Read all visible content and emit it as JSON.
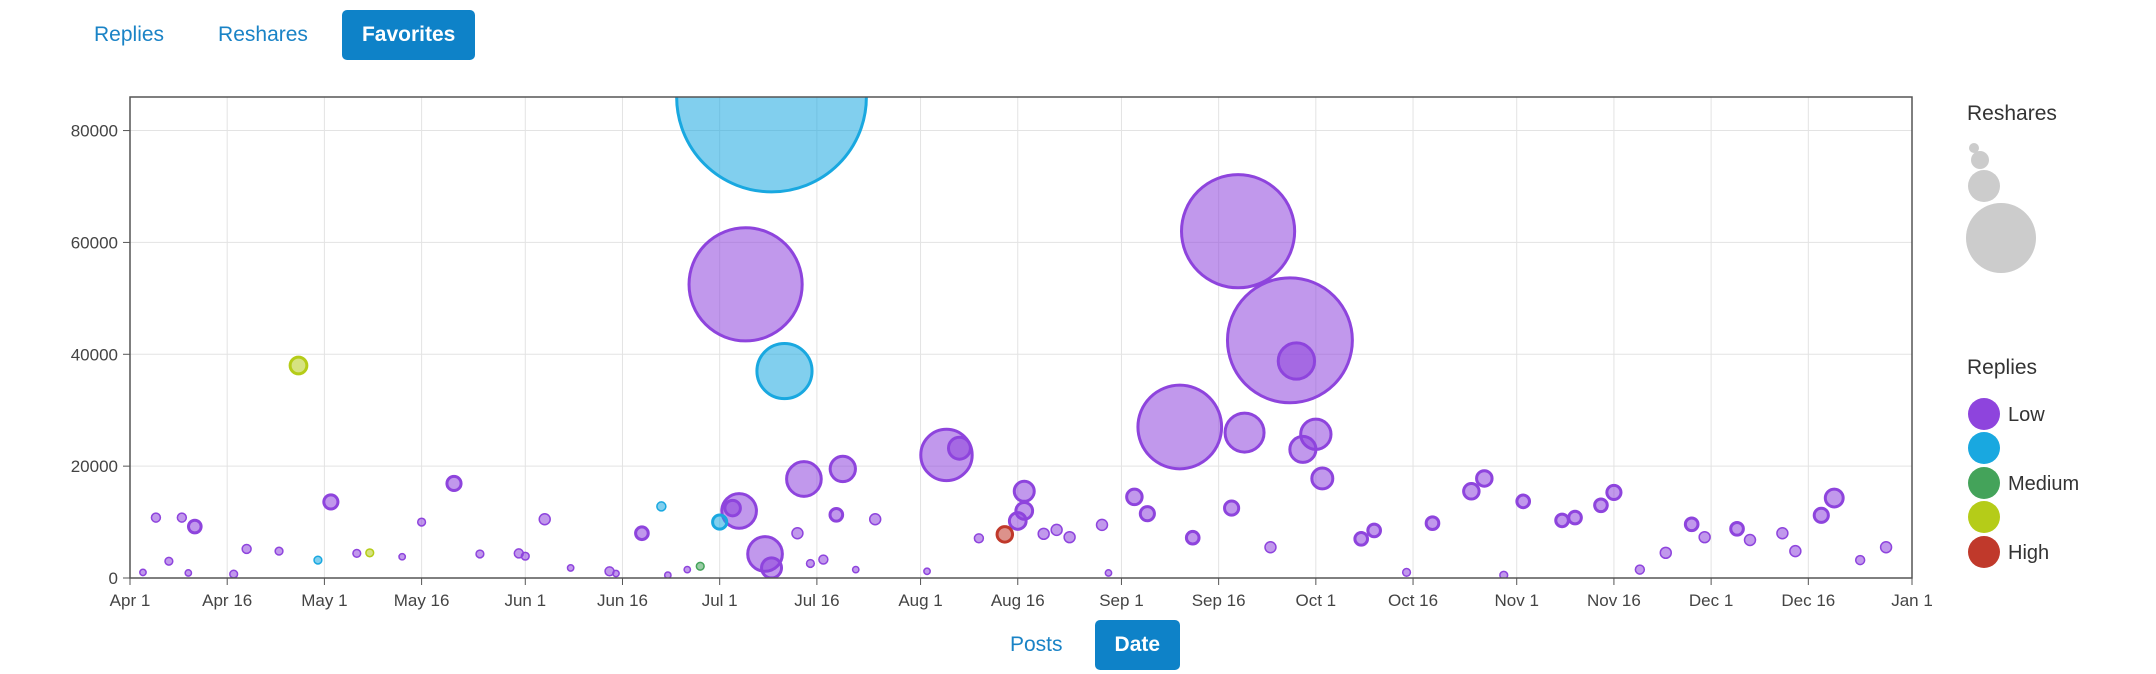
{
  "top_tabs": [
    {
      "label": "Replies",
      "active": false
    },
    {
      "label": "Reshares",
      "active": false
    },
    {
      "label": "Favorites",
      "active": true
    }
  ],
  "x_tabs": [
    {
      "label": "Posts",
      "active": false
    },
    {
      "label": "Date",
      "active": true
    }
  ],
  "colors": {
    "accent": "#0e82c8",
    "low": "#8e44dd",
    "medium": "#19a8e0",
    "medium_high": "#b5cc18",
    "high": "#c0392b",
    "grey": "#cccccc",
    "grid": "#e3e3e3"
  },
  "chart_data": {
    "type": "scatter",
    "title": "",
    "xlabel": "",
    "ylabel": "",
    "x_type": "date",
    "xlim": [
      "Apr 1",
      "Jan 1"
    ],
    "ylim": [
      0,
      86000
    ],
    "x_ticks": [
      "Apr 1",
      "Apr 16",
      "May 1",
      "May 16",
      "Jun 1",
      "Jun 16",
      "Jul 1",
      "Jul 16",
      "Aug 1",
      "Aug 16",
      "Sep 1",
      "Sep 16",
      "Oct 1",
      "Oct 16",
      "Nov 1",
      "Nov 16",
      "Dec 1",
      "Dec 16",
      "Jan 1"
    ],
    "y_ticks": [
      0,
      20000,
      40000,
      60000,
      80000
    ],
    "grid": true,
    "size_legend": {
      "title": "Reshares"
    },
    "color_legend": {
      "title": "Replies",
      "entries": [
        {
          "label": "Low",
          "color": "low"
        },
        {
          "label": "",
          "color": "medium"
        },
        {
          "label": "Medium",
          "color": "medium_green"
        },
        {
          "label": "",
          "color": "medium_high"
        },
        {
          "label": "High",
          "color": "high"
        }
      ]
    },
    "points": [
      {
        "date": "Jul 9",
        "y": 86000,
        "size": 9000,
        "color": "medium"
      },
      {
        "date": "Jul 5",
        "y": 52500,
        "size": 3200,
        "color": "low"
      },
      {
        "date": "Sep 19",
        "y": 62000,
        "size": 3200,
        "color": "low"
      },
      {
        "date": "Sep 27",
        "y": 42500,
        "size": 3900,
        "color": "low"
      },
      {
        "date": "Sep 10",
        "y": 27000,
        "size": 1750,
        "color": "low"
      },
      {
        "date": "Jul 11",
        "y": 37000,
        "size": 760,
        "color": "medium"
      },
      {
        "date": "Aug 5",
        "y": 22000,
        "size": 660,
        "color": "low"
      },
      {
        "date": "Sep 20",
        "y": 26000,
        "size": 380,
        "color": "low"
      },
      {
        "date": "Sep 28",
        "y": 38800,
        "size": 330,
        "color": "low"
      },
      {
        "date": "Sep 29",
        "y": 23000,
        "size": 170,
        "color": "low"
      },
      {
        "date": "Oct 1",
        "y": 25700,
        "size": 230,
        "color": "low"
      },
      {
        "date": "Oct 2",
        "y": 17800,
        "size": 110,
        "color": "low"
      },
      {
        "date": "Jul 14",
        "y": 17700,
        "size": 300,
        "color": "low"
      },
      {
        "date": "Jul 20",
        "y": 19500,
        "size": 160,
        "color": "low"
      },
      {
        "date": "Jul 4",
        "y": 12000,
        "size": 300,
        "color": "low"
      },
      {
        "date": "Jul 8",
        "y": 4300,
        "size": 300,
        "color": "low"
      },
      {
        "date": "Jul 9",
        "y": 1800,
        "size": 100,
        "color": "low"
      },
      {
        "date": "Aug 7",
        "y": 23200,
        "size": 120,
        "color": "low"
      },
      {
        "date": "Aug 17",
        "y": 15500,
        "size": 100,
        "color": "low"
      },
      {
        "date": "Aug 17",
        "y": 12000,
        "size": 70,
        "color": "low"
      },
      {
        "date": "Aug 16",
        "y": 10200,
        "size": 70,
        "color": "low"
      },
      {
        "date": "Aug 14",
        "y": 7800,
        "size": 60,
        "color": "high"
      },
      {
        "date": "Aug 20",
        "y": 7900,
        "size": 30,
        "color": "low"
      },
      {
        "date": "Aug 22",
        "y": 8600,
        "size": 30,
        "color": "low"
      },
      {
        "date": "Aug 24",
        "y": 7300,
        "size": 30,
        "color": "low"
      },
      {
        "date": "Aug 29",
        "y": 9500,
        "size": 30,
        "color": "low"
      },
      {
        "date": "Sep 3",
        "y": 14500,
        "size": 60,
        "color": "low"
      },
      {
        "date": "Sep 5",
        "y": 11500,
        "size": 50,
        "color": "low"
      },
      {
        "date": "Sep 12",
        "y": 7200,
        "size": 40,
        "color": "low"
      },
      {
        "date": "Sep 18",
        "y": 12500,
        "size": 50,
        "color": "low"
      },
      {
        "date": "Sep 24",
        "y": 5500,
        "size": 30,
        "color": "low"
      },
      {
        "date": "Oct 8",
        "y": 7000,
        "size": 40,
        "color": "low"
      },
      {
        "date": "Oct 10",
        "y": 8500,
        "size": 40,
        "color": "low"
      },
      {
        "date": "Oct 15",
        "y": 1000,
        "size": 15,
        "color": "low"
      },
      {
        "date": "Oct 19",
        "y": 9800,
        "size": 40,
        "color": "low"
      },
      {
        "date": "Oct 25",
        "y": 15500,
        "size": 60,
        "color": "low"
      },
      {
        "date": "Oct 27",
        "y": 17800,
        "size": 60,
        "color": "low"
      },
      {
        "date": "Oct 30",
        "y": 500,
        "size": 15,
        "color": "low"
      },
      {
        "date": "Nov 2",
        "y": 13700,
        "size": 40,
        "color": "low"
      },
      {
        "date": "Nov 8",
        "y": 10300,
        "size": 40,
        "color": "low"
      },
      {
        "date": "Nov 10",
        "y": 10800,
        "size": 40,
        "color": "low"
      },
      {
        "date": "Nov 14",
        "y": 13000,
        "size": 40,
        "color": "low"
      },
      {
        "date": "Nov 16",
        "y": 15300,
        "size": 50,
        "color": "low"
      },
      {
        "date": "Nov 20",
        "y": 1500,
        "size": 20,
        "color": "low"
      },
      {
        "date": "Nov 24",
        "y": 4500,
        "size": 30,
        "color": "low"
      },
      {
        "date": "Nov 28",
        "y": 9600,
        "size": 40,
        "color": "low"
      },
      {
        "date": "Nov 30",
        "y": 7300,
        "size": 30,
        "color": "low"
      },
      {
        "date": "Dec 5",
        "y": 8800,
        "size": 40,
        "color": "low"
      },
      {
        "date": "Dec 7",
        "y": 6800,
        "size": 30,
        "color": "low"
      },
      {
        "date": "Dec 12",
        "y": 8000,
        "size": 30,
        "color": "low"
      },
      {
        "date": "Dec 14",
        "y": 4800,
        "size": 30,
        "color": "low"
      },
      {
        "date": "Dec 18",
        "y": 11200,
        "size": 50,
        "color": "low"
      },
      {
        "date": "Dec 20",
        "y": 14300,
        "size": 80,
        "color": "low"
      },
      {
        "date": "Dec 24",
        "y": 3200,
        "size": 20,
        "color": "low"
      },
      {
        "date": "Dec 28",
        "y": 5500,
        "size": 30,
        "color": "low"
      },
      {
        "date": "Apr 27",
        "y": 38000,
        "size": 70,
        "color": "medium_high"
      },
      {
        "date": "Apr 5",
        "y": 10800,
        "size": 20,
        "color": "low"
      },
      {
        "date": "Apr 7",
        "y": 3000,
        "size": 15,
        "color": "low"
      },
      {
        "date": "Apr 9",
        "y": 10800,
        "size": 20,
        "color": "low"
      },
      {
        "date": "Apr 11",
        "y": 9200,
        "size": 40,
        "color": "low"
      },
      {
        "date": "Apr 3",
        "y": 1000,
        "size": 10,
        "color": "low"
      },
      {
        "date": "Apr 10",
        "y": 900,
        "size": 10,
        "color": "low"
      },
      {
        "date": "Apr 17",
        "y": 700,
        "size": 15,
        "color": "low"
      },
      {
        "date": "Apr 19",
        "y": 5200,
        "size": 20,
        "color": "low"
      },
      {
        "date": "Apr 24",
        "y": 4800,
        "size": 15,
        "color": "low"
      },
      {
        "date": "Apr 30",
        "y": 3200,
        "size": 15,
        "color": "medium"
      },
      {
        "date": "May 2",
        "y": 13600,
        "size": 50,
        "color": "low"
      },
      {
        "date": "May 6",
        "y": 4400,
        "size": 15,
        "color": "low"
      },
      {
        "date": "May 8",
        "y": 4500,
        "size": 15,
        "color": "medium_high"
      },
      {
        "date": "May 13",
        "y": 3800,
        "size": 10,
        "color": "low"
      },
      {
        "date": "May 16",
        "y": 10000,
        "size": 15,
        "color": "low"
      },
      {
        "date": "May 21",
        "y": 16900,
        "size": 50,
        "color": "low"
      },
      {
        "date": "May 25",
        "y": 4300,
        "size": 15,
        "color": "low"
      },
      {
        "date": "May 31",
        "y": 4400,
        "size": 20,
        "color": "low"
      },
      {
        "date": "Jun 1",
        "y": 3900,
        "size": 15,
        "color": "low"
      },
      {
        "date": "Jun 4",
        "y": 10500,
        "size": 30,
        "color": "low"
      },
      {
        "date": "Jun 8",
        "y": 1800,
        "size": 10,
        "color": "low"
      },
      {
        "date": "Jun 14",
        "y": 1200,
        "size": 20,
        "color": "low"
      },
      {
        "date": "Jun 15",
        "y": 800,
        "size": 10,
        "color": "low"
      },
      {
        "date": "Jun 19",
        "y": 8000,
        "size": 40,
        "color": "low"
      },
      {
        "date": "Jun 22",
        "y": 12800,
        "size": 20,
        "color": "medium"
      },
      {
        "date": "Jun 23",
        "y": 500,
        "size": 10,
        "color": "low"
      },
      {
        "date": "Jun 26",
        "y": 1500,
        "size": 10,
        "color": "low"
      },
      {
        "date": "Jun 28",
        "y": 2100,
        "size": 15,
        "color": "medium_green"
      },
      {
        "date": "Jul 1",
        "y": 10000,
        "size": 50,
        "color": "medium"
      },
      {
        "date": "Jul 3",
        "y": 12500,
        "size": 60,
        "color": "low"
      },
      {
        "date": "Jul 13",
        "y": 8000,
        "size": 30,
        "color": "low"
      },
      {
        "date": "Jul 15",
        "y": 2600,
        "size": 15,
        "color": "low"
      },
      {
        "date": "Jul 17",
        "y": 3300,
        "size": 20,
        "color": "low"
      },
      {
        "date": "Jul 19",
        "y": 11300,
        "size": 40,
        "color": "low"
      },
      {
        "date": "Jul 22",
        "y": 1500,
        "size": 10,
        "color": "low"
      },
      {
        "date": "Jul 25",
        "y": 10500,
        "size": 30,
        "color": "low"
      },
      {
        "date": "Aug 2",
        "y": 1200,
        "size": 10,
        "color": "low"
      },
      {
        "date": "Aug 10",
        "y": 7100,
        "size": 20,
        "color": "low"
      },
      {
        "date": "Aug 30",
        "y": 900,
        "size": 10,
        "color": "low"
      }
    ]
  }
}
